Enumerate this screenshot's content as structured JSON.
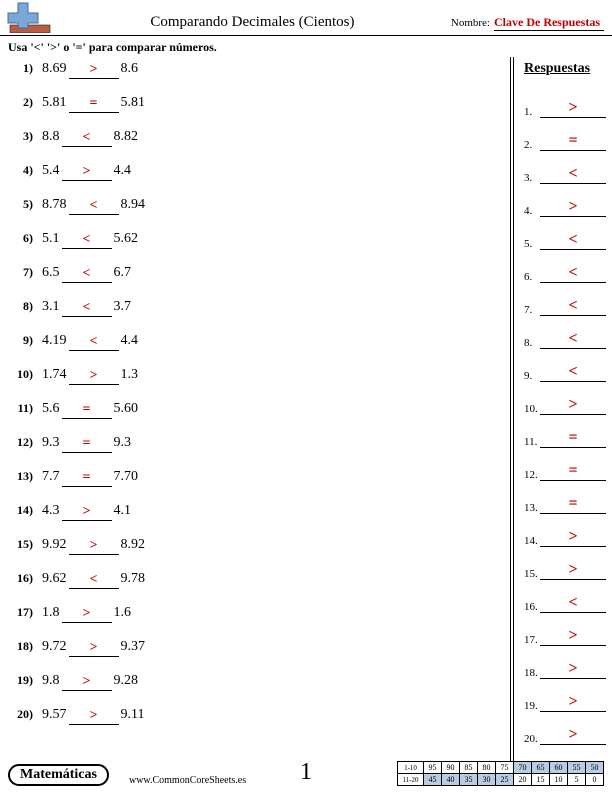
{
  "header": {
    "title": "Comparando Decimales (Cientos)",
    "name_label": "Nombre:",
    "name_value": "Clave De Respuestas"
  },
  "instructions": "Usa '<' '>' o '=' para comparar números.",
  "answers_heading": "Respuestas",
  "problems": [
    {
      "n": "1",
      "a": "8.69",
      "op": ">",
      "b": "8.6"
    },
    {
      "n": "2",
      "a": "5.81",
      "op": "=",
      "b": "5.81"
    },
    {
      "n": "3",
      "a": "8.8",
      "op": "<",
      "b": "8.82"
    },
    {
      "n": "4",
      "a": "5.4",
      "op": ">",
      "b": "4.4"
    },
    {
      "n": "5",
      "a": "8.78",
      "op": "<",
      "b": "8.94"
    },
    {
      "n": "6",
      "a": "5.1",
      "op": "<",
      "b": "5.62"
    },
    {
      "n": "7",
      "a": "6.5",
      "op": "<",
      "b": "6.7"
    },
    {
      "n": "8",
      "a": "3.1",
      "op": "<",
      "b": "3.7"
    },
    {
      "n": "9",
      "a": "4.19",
      "op": "<",
      "b": "4.4"
    },
    {
      "n": "10",
      "a": "1.74",
      "op": ">",
      "b": "1.3"
    },
    {
      "n": "11",
      "a": "5.6",
      "op": "=",
      "b": "5.60"
    },
    {
      "n": "12",
      "a": "9.3",
      "op": "=",
      "b": "9.3"
    },
    {
      "n": "13",
      "a": "7.7",
      "op": "=",
      "b": "7.70"
    },
    {
      "n": "14",
      "a": "4.3",
      "op": ">",
      "b": "4.1"
    },
    {
      "n": "15",
      "a": "9.92",
      "op": ">",
      "b": "8.92"
    },
    {
      "n": "16",
      "a": "9.62",
      "op": "<",
      "b": "9.78"
    },
    {
      "n": "17",
      "a": "1.8",
      "op": ">",
      "b": "1.6"
    },
    {
      "n": "18",
      "a": "9.72",
      "op": ">",
      "b": "9.37"
    },
    {
      "n": "19",
      "a": "9.8",
      "op": ">",
      "b": "9.28"
    },
    {
      "n": "20",
      "a": "9.57",
      "op": ">",
      "b": "9.11"
    }
  ],
  "footer": {
    "subject": "Matemáticas",
    "site": "www.CommonCoreSheets.es",
    "page": "1",
    "score_labels": [
      "1-10",
      "11-20"
    ],
    "score_row1": [
      "95",
      "90",
      "85",
      "80",
      "75",
      "70",
      "65",
      "60",
      "55",
      "50"
    ],
    "score_row2": [
      "45",
      "40",
      "35",
      "30",
      "25",
      "20",
      "15",
      "10",
      "5",
      "0"
    ],
    "shaded_start_col": 5
  },
  "colors": {
    "answer_color": "#c00000",
    "shade": "#b8cce4",
    "logo_blue": "#7ba7d7",
    "logo_brick": "#b85c44"
  }
}
